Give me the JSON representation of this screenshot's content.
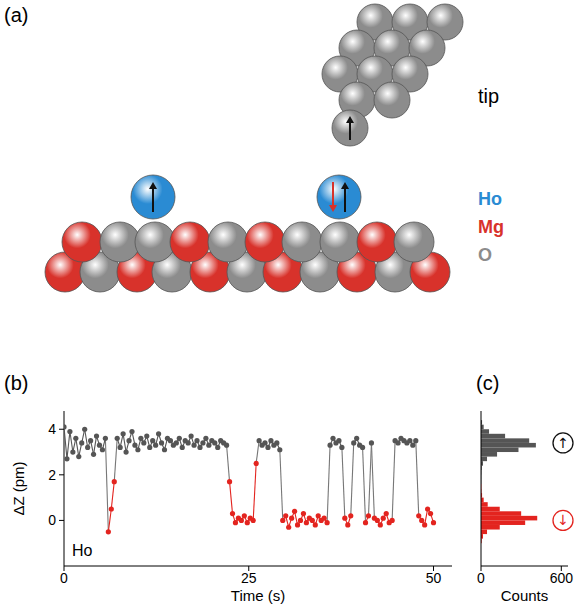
{
  "diagram": {
    "label": "(a)",
    "tip_label": "tip",
    "legend": [
      {
        "text": "Ho",
        "color": "#2a8bd3"
      },
      {
        "text": "Mg",
        "color": "#d8322b"
      },
      {
        "text": "O",
        "color": "#8c8c8c"
      }
    ]
  },
  "chart_data": [
    {
      "type": "line",
      "marker": "circle",
      "panel_label": "(b)",
      "xlabel": "Time (s)",
      "ylabel": "ΔZ (pm)",
      "xlim": [
        0,
        52.5
      ],
      "ylim": [
        -2,
        4.8
      ],
      "xticks": [
        0,
        25,
        50
      ],
      "yticks": [
        0,
        2,
        4
      ],
      "annotations": [
        {
          "text": "Ho"
        }
      ],
      "x": [
        0,
        0.4,
        0.8,
        1.2,
        1.6,
        2,
        2.4,
        2.8,
        3.2,
        3.6,
        4,
        4.4,
        4.8,
        5.2,
        5.6,
        6,
        6.4,
        6.8,
        7.2,
        7.6,
        8,
        8.4,
        8.8,
        9.2,
        9.6,
        10,
        10.4,
        10.8,
        11.2,
        11.6,
        12,
        12.4,
        12.8,
        13.2,
        13.6,
        14,
        14.4,
        14.8,
        15.2,
        15.6,
        16,
        16.4,
        16.8,
        17.2,
        17.6,
        18,
        18.4,
        18.8,
        19.2,
        19.6,
        20,
        20.4,
        20.8,
        21.2,
        21.6,
        22,
        22.4,
        22.8,
        23.2,
        23.6,
        24,
        24.4,
        24.8,
        25.2,
        25.6,
        26,
        26.4,
        26.8,
        27.2,
        27.6,
        28,
        28.4,
        28.8,
        29.2,
        29.6,
        30,
        30.4,
        30.8,
        31.2,
        31.6,
        32,
        32.4,
        32.8,
        33.2,
        33.6,
        34,
        34.4,
        34.8,
        35.2,
        35.6,
        36,
        36.4,
        36.8,
        37.2,
        37.6,
        38,
        38.4,
        38.8,
        39.2,
        39.6,
        40,
        40.4,
        40.8,
        41.2,
        41.6,
        42,
        42.4,
        42.8,
        43.2,
        43.6,
        44,
        44.4,
        44.8,
        45.2,
        45.6,
        46,
        46.4,
        46.8,
        47.2,
        47.6,
        48,
        48.4,
        48.8,
        49.2,
        49.6,
        50
      ],
      "series": [
        {
          "values": [
            4.1,
            2.7,
            3.9,
            3.0,
            3.6,
            2.8,
            3.4,
            4.0,
            3.2,
            3.5,
            2.9,
            3.7,
            3.3,
            3.1,
            3.6,
            -0.5,
            0.5,
            1.7,
            3.6,
            3.2,
            3.8,
            3.0,
            3.5,
            3.9,
            3.3,
            3.1,
            3.6,
            3.4,
            3.7,
            3.2,
            3.5,
            3.3,
            3.8,
            3.4,
            3.1,
            3.6,
            3.5,
            3.3,
            3.4,
            3.6,
            3.2,
            3.5,
            3.4,
            3.7,
            3.3,
            3.5,
            3.2,
            3.4,
            3.6,
            3.3,
            3.5,
            3.4,
            3.2,
            3.5,
            3.4,
            3.3,
            1.7,
            0.3,
            -0.1,
            0.1,
            0.0,
            0.2,
            -0.1,
            0.1,
            0.0,
            2.5,
            3.5,
            3.3,
            3.4,
            3.2,
            3.5,
            3.3,
            3.4,
            3.1,
            0.0,
            0.2,
            -0.3,
            0.1,
            0.4,
            -0.2,
            0.0,
            0.3,
            -0.1,
            0.1,
            0.0,
            -0.2,
            0.2,
            0.0,
            0.1,
            -0.1,
            3.3,
            3.6,
            3.4,
            3.5,
            3.2,
            0.1,
            -0.2,
            0.2,
            3.4,
            3.6,
            3.3,
            3.2,
            -0.1,
            0.2,
            3.4,
            0.1,
            0.0,
            -0.2,
            0.1,
            0.3,
            -0.1,
            0.0,
            3.5,
            3.4,
            3.6,
            3.5,
            3.4,
            3.5,
            3.3,
            3.5,
            0.2,
            0.0,
            -0.2,
            0.5,
            0.3,
            -0.1
          ],
          "colors": [
            "#555",
            "#555",
            "#555",
            "#555",
            "#555",
            "#555",
            "#555",
            "#555",
            "#555",
            "#555",
            "#555",
            "#555",
            "#555",
            "#555",
            "#555",
            "#e3241f",
            "#e3241f",
            "#e3241f",
            "#555",
            "#555",
            "#555",
            "#555",
            "#555",
            "#555",
            "#555",
            "#555",
            "#555",
            "#555",
            "#555",
            "#555",
            "#555",
            "#555",
            "#555",
            "#555",
            "#555",
            "#555",
            "#555",
            "#555",
            "#555",
            "#555",
            "#555",
            "#555",
            "#555",
            "#555",
            "#555",
            "#555",
            "#555",
            "#555",
            "#555",
            "#555",
            "#555",
            "#555",
            "#555",
            "#555",
            "#555",
            "#555",
            "#e3241f",
            "#e3241f",
            "#e3241f",
            "#e3241f",
            "#e3241f",
            "#e3241f",
            "#e3241f",
            "#e3241f",
            "#e3241f",
            "#e3241f",
            "#555",
            "#555",
            "#555",
            "#555",
            "#555",
            "#555",
            "#555",
            "#555",
            "#e3241f",
            "#e3241f",
            "#e3241f",
            "#e3241f",
            "#e3241f",
            "#e3241f",
            "#e3241f",
            "#e3241f",
            "#e3241f",
            "#e3241f",
            "#e3241f",
            "#e3241f",
            "#e3241f",
            "#e3241f",
            "#e3241f",
            "#e3241f",
            "#555",
            "#555",
            "#555",
            "#555",
            "#555",
            "#e3241f",
            "#e3241f",
            "#e3241f",
            "#555",
            "#555",
            "#555",
            "#555",
            "#e3241f",
            "#e3241f",
            "#555",
            "#e3241f",
            "#e3241f",
            "#e3241f",
            "#e3241f",
            "#e3241f",
            "#e3241f",
            "#e3241f",
            "#555",
            "#555",
            "#555",
            "#555",
            "#555",
            "#555",
            "#555",
            "#555",
            "#e3241f",
            "#e3241f",
            "#e3241f",
            "#e3241f",
            "#e3241f",
            "#e3241f"
          ]
        }
      ]
    },
    {
      "type": "histogram",
      "orientation": "horizontal",
      "panel_label": "(c)",
      "xlabel": "Counts",
      "xlim": [
        0,
        650
      ],
      "xticks": [
        0,
        600
      ],
      "ylim": [
        -2,
        4.8
      ],
      "tick_labels": "x",
      "bins": [
        -1.0,
        -0.8,
        -0.6,
        -0.4,
        -0.2,
        0.0,
        0.2,
        0.4,
        0.6,
        0.8,
        1.0,
        1.2,
        1.4,
        1.6,
        1.8,
        2.0,
        2.2,
        2.4,
        2.6,
        2.8,
        3.0,
        3.2,
        3.4,
        3.6,
        3.8,
        4.0,
        4.2,
        4.4
      ],
      "values": [
        5,
        15,
        45,
        140,
        330,
        420,
        300,
        140,
        50,
        20,
        8,
        4,
        3,
        3,
        3,
        4,
        6,
        15,
        45,
        120,
        280,
        410,
        360,
        180,
        60,
        20,
        8
      ],
      "colors": [
        "#e3241f",
        "#e3241f",
        "#e3241f",
        "#e3241f",
        "#e3241f",
        "#e3241f",
        "#e3241f",
        "#e3241f",
        "#e3241f",
        "#e3241f",
        "#e3241f",
        "#e3241f",
        "#e3241f",
        "#555",
        "#555",
        "#555",
        "#555",
        "#555",
        "#555",
        "#555",
        "#555",
        "#555",
        "#555",
        "#555",
        "#555",
        "#555",
        "#555"
      ],
      "annotations": [
        {
          "text": "↑",
          "y": 3.4,
          "color": "#111"
        },
        {
          "text": "↓",
          "y": 0,
          "color": "#e3241f"
        }
      ]
    }
  ]
}
